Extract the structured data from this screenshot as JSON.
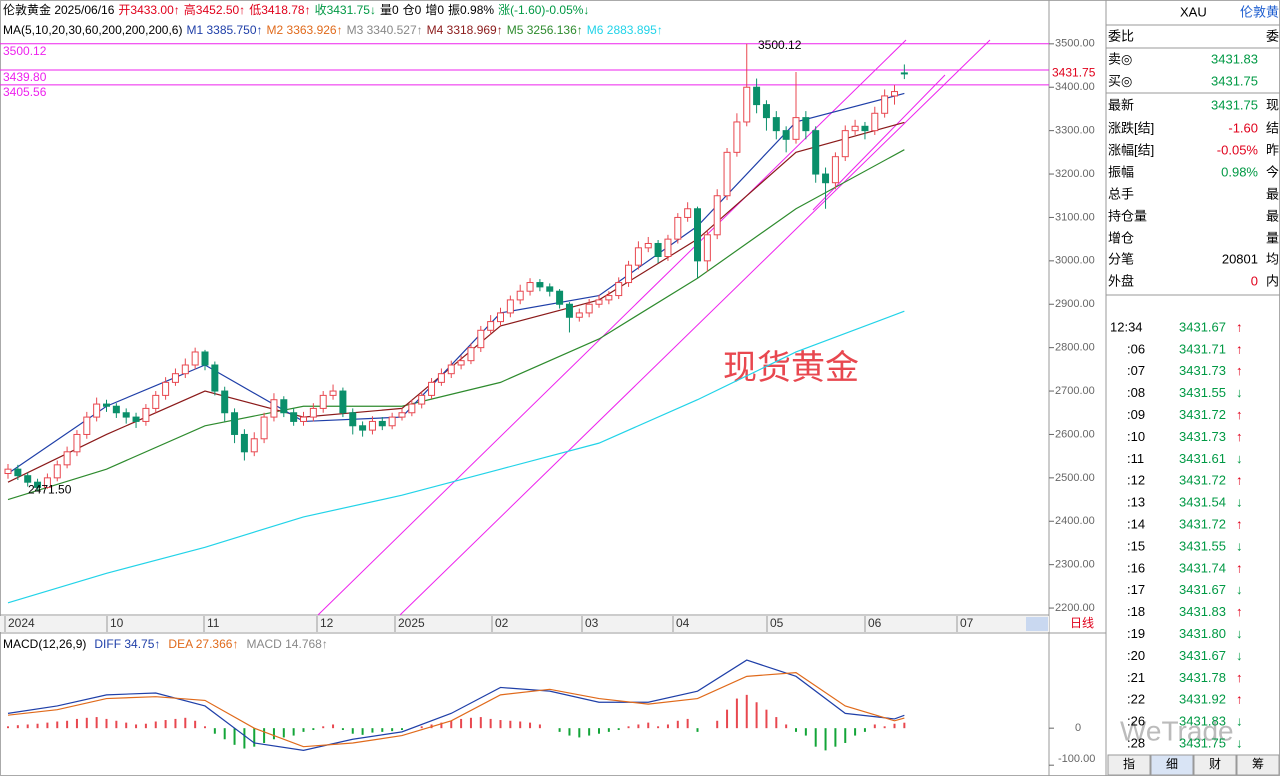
{
  "header": {
    "quote": [
      {
        "text": "伦敦黄金 2025/06/16",
        "color": "#000000"
      },
      {
        "text": "开3433.00↑",
        "color": "#e0001b"
      },
      {
        "text": "高3452.50↑",
        "color": "#e0001b"
      },
      {
        "text": "低3418.78↑",
        "color": "#e0001b"
      },
      {
        "text": "收3431.75↓",
        "color": "#009944"
      },
      {
        "text": "量0",
        "color": "#000000"
      },
      {
        "text": "仓0",
        "color": "#000000"
      },
      {
        "text": "增0",
        "color": "#000000"
      },
      {
        "text": "振0.98%",
        "color": "#000000"
      },
      {
        "text": "涨(-1.60)-0.05%↓",
        "color": "#009944"
      }
    ],
    "ma": [
      {
        "text": "MA(5,10,20,30,60,200,200,200,6)",
        "color": "#000000"
      },
      {
        "text": "M1 3385.750↑",
        "color": "#1f3fa8"
      },
      {
        "text": "M2 3363.926↑",
        "color": "#e06a1b"
      },
      {
        "text": "M3 3340.527↑",
        "color": "#888888"
      },
      {
        "text": "M4 3318.969↑",
        "color": "#8b1a1a"
      },
      {
        "text": "M5 3256.136↑",
        "color": "#2e8b2e"
      },
      {
        "text": "M6 2883.895↑",
        "color": "#22d3e8"
      }
    ]
  },
  "chart_data": {
    "type": "candlestick",
    "title": "现货黄金",
    "ylim": [
      2184,
      3601
    ],
    "yticks": [
      {
        "value": 2200,
        "label": "2200.00"
      },
      {
        "value": 2300,
        "label": "2300.00"
      },
      {
        "value": 2400,
        "label": "2400.00"
      },
      {
        "value": 2500,
        "label": "2500.00"
      },
      {
        "value": 2600,
        "label": "2600.00"
      },
      {
        "value": 2700,
        "label": "2700.00"
      },
      {
        "value": 2800,
        "label": "2800.00"
      },
      {
        "value": 2900,
        "label": "2900.00"
      },
      {
        "value": 3000,
        "label": "3000.00"
      },
      {
        "value": 3100,
        "label": "3100.00"
      },
      {
        "value": 3200,
        "label": "3200.00"
      },
      {
        "value": 3300,
        "label": "3300.00"
      },
      {
        "value": 3400,
        "label": "3400.00"
      },
      {
        "value": 3500,
        "label": "3500.00"
      }
    ],
    "x_labels": [
      "2024",
      "10",
      "11",
      "12",
      "2025",
      "02",
      "03",
      "04",
      "05",
      "06",
      "07"
    ],
    "period": "日线",
    "levels": [
      {
        "value": 3500.12,
        "label": "3500.12"
      },
      {
        "value": 3439.8,
        "label": "3439.80"
      },
      {
        "value": 3405.56,
        "label": "3405.56"
      }
    ],
    "low_label": "2471.50",
    "colors": {
      "up": "#e8474f",
      "down": "#0a8f6a",
      "level": "#ee22ee"
    },
    "candles": [
      [
        2510,
        2532,
        2498,
        2520
      ],
      [
        2520,
        2530,
        2495,
        2505
      ],
      [
        2505,
        2512,
        2480,
        2490
      ],
      [
        2490,
        2498,
        2471.5,
        2478
      ],
      [
        2478,
        2510,
        2475,
        2500
      ],
      [
        2500,
        2540,
        2492,
        2530
      ],
      [
        2530,
        2572,
        2522,
        2560
      ],
      [
        2560,
        2610,
        2550,
        2600
      ],
      [
        2600,
        2652,
        2590,
        2640
      ],
      [
        2640,
        2685,
        2630,
        2670
      ],
      [
        2670,
        2680,
        2652,
        2665
      ],
      [
        2665,
        2672,
        2638,
        2650
      ],
      [
        2650,
        2660,
        2625,
        2640
      ],
      [
        2640,
        2650,
        2615,
        2630
      ],
      [
        2630,
        2670,
        2620,
        2660
      ],
      [
        2660,
        2700,
        2650,
        2690
      ],
      [
        2690,
        2732,
        2680,
        2720
      ],
      [
        2720,
        2752,
        2712,
        2740
      ],
      [
        2740,
        2775,
        2730,
        2760
      ],
      [
        2760,
        2800,
        2750,
        2790
      ],
      [
        2790,
        2795,
        2748,
        2760
      ],
      [
        2760,
        2768,
        2690,
        2700
      ],
      [
        2700,
        2710,
        2630,
        2650
      ],
      [
        2650,
        2660,
        2580,
        2600
      ],
      [
        2600,
        2612,
        2540,
        2560
      ],
      [
        2560,
        2605,
        2550,
        2590
      ],
      [
        2590,
        2650,
        2580,
        2640
      ],
      [
        2640,
        2695,
        2630,
        2680
      ],
      [
        2680,
        2688,
        2640,
        2650
      ],
      [
        2650,
        2660,
        2620,
        2630
      ],
      [
        2630,
        2652,
        2620,
        2640
      ],
      [
        2640,
        2672,
        2630,
        2660
      ],
      [
        2660,
        2700,
        2650,
        2690
      ],
      [
        2690,
        2715,
        2680,
        2700
      ],
      [
        2700,
        2708,
        2640,
        2650
      ],
      [
        2650,
        2660,
        2600,
        2620
      ],
      [
        2620,
        2630,
        2595,
        2610
      ],
      [
        2610,
        2642,
        2600,
        2630
      ],
      [
        2630,
        2640,
        2610,
        2620
      ],
      [
        2620,
        2650,
        2612,
        2640
      ],
      [
        2640,
        2660,
        2632,
        2650
      ],
      [
        2650,
        2680,
        2642,
        2670
      ],
      [
        2670,
        2700,
        2660,
        2690
      ],
      [
        2690,
        2730,
        2682,
        2720
      ],
      [
        2720,
        2752,
        2712,
        2740
      ],
      [
        2740,
        2770,
        2730,
        2760
      ],
      [
        2760,
        2782,
        2750,
        2770
      ],
      [
        2770,
        2810,
        2762,
        2800
      ],
      [
        2800,
        2850,
        2790,
        2840
      ],
      [
        2840,
        2875,
        2830,
        2860
      ],
      [
        2860,
        2892,
        2850,
        2880
      ],
      [
        2880,
        2920,
        2870,
        2910
      ],
      [
        2910,
        2945,
        2900,
        2930
      ],
      [
        2930,
        2960,
        2920,
        2950
      ],
      [
        2950,
        2958,
        2930,
        2940
      ],
      [
        2940,
        2948,
        2918,
        2930
      ],
      [
        2930,
        2935,
        2890,
        2900
      ],
      [
        2900,
        2905,
        2835,
        2870
      ],
      [
        2870,
        2890,
        2860,
        2880
      ],
      [
        2880,
        2912,
        2870,
        2900
      ],
      [
        2900,
        2922,
        2892,
        2910
      ],
      [
        2910,
        2930,
        2900,
        2920
      ],
      [
        2920,
        2962,
        2912,
        2950
      ],
      [
        2950,
        3000,
        2940,
        2990
      ],
      [
        2990,
        3045,
        2980,
        3030
      ],
      [
        3030,
        3055,
        3020,
        3040
      ],
      [
        3040,
        3048,
        2995,
        3010
      ],
      [
        3010,
        3060,
        3000,
        3050
      ],
      [
        3050,
        3110,
        3040,
        3100
      ],
      [
        3100,
        3135,
        3090,
        3120
      ],
      [
        3120,
        3125,
        2960,
        3000
      ],
      [
        3000,
        3070,
        2975,
        3060
      ],
      [
        3060,
        3165,
        3050,
        3150
      ],
      [
        3150,
        3260,
        3140,
        3250
      ],
      [
        3250,
        3340,
        3240,
        3320
      ],
      [
        3320,
        3500.12,
        3310,
        3400
      ],
      [
        3400,
        3420,
        3340,
        3360
      ],
      [
        3360,
        3370,
        3300,
        3330
      ],
      [
        3330,
        3345,
        3280,
        3300
      ],
      [
        3300,
        3310,
        3250,
        3280
      ],
      [
        3280,
        3435,
        3270,
        3330
      ],
      [
        3330,
        3345,
        3280,
        3300
      ],
      [
        3300,
        3310,
        3180,
        3200
      ],
      [
        3200,
        3215,
        3120,
        3180
      ],
      [
        3180,
        3250,
        3165,
        3240
      ],
      [
        3240,
        3312,
        3230,
        3300
      ],
      [
        3300,
        3325,
        3290,
        3310
      ],
      [
        3310,
        3320,
        3280,
        3300
      ],
      [
        3300,
        3355,
        3290,
        3340
      ],
      [
        3340,
        3395,
        3330,
        3380
      ],
      [
        3380,
        3405,
        3360,
        3390
      ],
      [
        3433,
        3452.5,
        3418.78,
        3431.75
      ]
    ],
    "ma_x": [
      0,
      10,
      20,
      30,
      40,
      50,
      60,
      70,
      80,
      91
    ],
    "series": [
      {
        "name": "M6",
        "color": "#22d3e8",
        "values": [
          2212,
          2280,
          2340,
          2410,
          2460,
          2520,
          2580,
          2680,
          2790,
          2883.895
        ]
      },
      {
        "name": "M5",
        "color": "#2e8b2e",
        "values": [
          2450,
          2520,
          2620,
          2665,
          2665,
          2720,
          2820,
          2960,
          3120,
          3256.136
        ]
      },
      {
        "name": "M4",
        "color": "#8b1a1a",
        "values": [
          2490,
          2600,
          2700,
          2640,
          2660,
          2850,
          2910,
          3050,
          3250,
          3318.969
        ]
      },
      {
        "name": "M1",
        "color": "#1f3fa8",
        "values": [
          2510,
          2665,
          2760,
          2630,
          2640,
          2880,
          2920,
          3080,
          3320,
          3385.75
        ]
      }
    ]
  },
  "macd": {
    "title": "MACD(12,26,9)",
    "legend": [
      {
        "text": "DIFF 34.75↑",
        "color": "#1f3fa8"
      },
      {
        "text": "DEA 27.366↑",
        "color": "#e06a1b"
      },
      {
        "text": "MACD 14.768↑",
        "color": "#888888"
      }
    ],
    "ylim": [
      -113,
      249
    ],
    "yticks": [
      0,
      {
        "value": -100,
        "label": "-100.00"
      }
    ],
    "hist": [
      5,
      8,
      10,
      12,
      15,
      18,
      20,
      25,
      28,
      30,
      25,
      20,
      15,
      10,
      12,
      18,
      22,
      25,
      28,
      20,
      5,
      -15,
      -30,
      -45,
      -55,
      -50,
      -40,
      -30,
      -25,
      -20,
      -10,
      -5,
      5,
      10,
      -5,
      -15,
      -18,
      -12,
      -10,
      -8,
      -5,
      0,
      5,
      10,
      15,
      20,
      25,
      28,
      30,
      25,
      22,
      20,
      18,
      15,
      10,
      0,
      -10,
      -20,
      -25,
      -20,
      -15,
      -10,
      -5,
      5,
      10,
      15,
      5,
      10,
      20,
      25,
      -10,
      0,
      20,
      50,
      80,
      90,
      70,
      50,
      30,
      10,
      -10,
      -20,
      -50,
      -60,
      -50,
      -40,
      -20,
      -10,
      10,
      5,
      12,
      14.768
    ],
    "x": [
      0,
      5,
      10,
      15,
      20,
      25,
      30,
      35,
      40,
      45,
      50,
      55,
      60,
      65,
      70,
      75,
      80,
      85,
      90,
      91
    ],
    "series": [
      {
        "name": "DIFF",
        "color": "#1f3fa8",
        "values": [
          40,
          60,
          90,
          95,
          60,
          -40,
          -60,
          -30,
          -10,
          40,
          110,
          100,
          70,
          70,
          100,
          184,
          140,
          40,
          25,
          34.75
        ]
      },
      {
        "name": "DEA",
        "color": "#e06a1b",
        "values": [
          35,
          50,
          80,
          85,
          75,
          0,
          -50,
          -40,
          -20,
          20,
          90,
          105,
          80,
          65,
          80,
          140,
          150,
          60,
          20,
          27.366
        ]
      }
    ]
  },
  "panel": {
    "symbol": "XAU",
    "name": "伦敦黄",
    "rows": [
      {
        "label": "委比",
        "side": "委"
      },
      {
        "label": "卖◎",
        "value": "3431.83"
      },
      {
        "label": "买◎",
        "value": "3431.75"
      },
      {
        "label": "最新",
        "value": "3431.75",
        "side": "现"
      },
      {
        "label": "涨跌[结]",
        "value": "-1.60",
        "side": "结"
      },
      {
        "label": "涨幅[结]",
        "value": "-0.05%",
        "side": "昨"
      },
      {
        "label": "振幅",
        "value": "0.98%",
        "side": "今"
      },
      {
        "label": "总手",
        "side": "最"
      },
      {
        "label": "持仓量",
        "side": "最"
      },
      {
        "label": "增仓",
        "side": "量"
      },
      {
        "label": "分笔",
        "value": "20801",
        "side": "均"
      },
      {
        "label": "外盘",
        "value": "0",
        "side": "内"
      }
    ],
    "ticks": [
      [
        "12:34",
        "3431.67",
        "↑"
      ],
      [
        ":06",
        "3431.71",
        "↑"
      ],
      [
        ":07",
        "3431.73",
        "↑"
      ],
      [
        ":08",
        "3431.55",
        "↓"
      ],
      [
        ":09",
        "3431.72",
        "↑"
      ],
      [
        ":10",
        "3431.73",
        "↑"
      ],
      [
        ":11",
        "3431.61",
        "↓"
      ],
      [
        ":12",
        "3431.72",
        "↑"
      ],
      [
        ":13",
        "3431.54",
        "↓"
      ],
      [
        ":14",
        "3431.72",
        "↑"
      ],
      [
        ":15",
        "3431.55",
        "↓"
      ],
      [
        ":16",
        "3431.74",
        "↑"
      ],
      [
        ":17",
        "3431.67",
        "↓"
      ],
      [
        ":18",
        "3431.83",
        "↑"
      ],
      [
        ":19",
        "3431.80",
        "↓"
      ],
      [
        ":20",
        "3431.67",
        "↓"
      ],
      [
        ":21",
        "3431.78",
        "↑"
      ],
      [
        ":22",
        "3431.92",
        "↑"
      ],
      [
        ":26",
        "3431.83",
        "↓"
      ],
      [
        ":28",
        "3431.75",
        "↓"
      ]
    ],
    "tabs": [
      "指",
      "细",
      "财",
      "筹"
    ]
  },
  "watermark": "WeTrade"
}
